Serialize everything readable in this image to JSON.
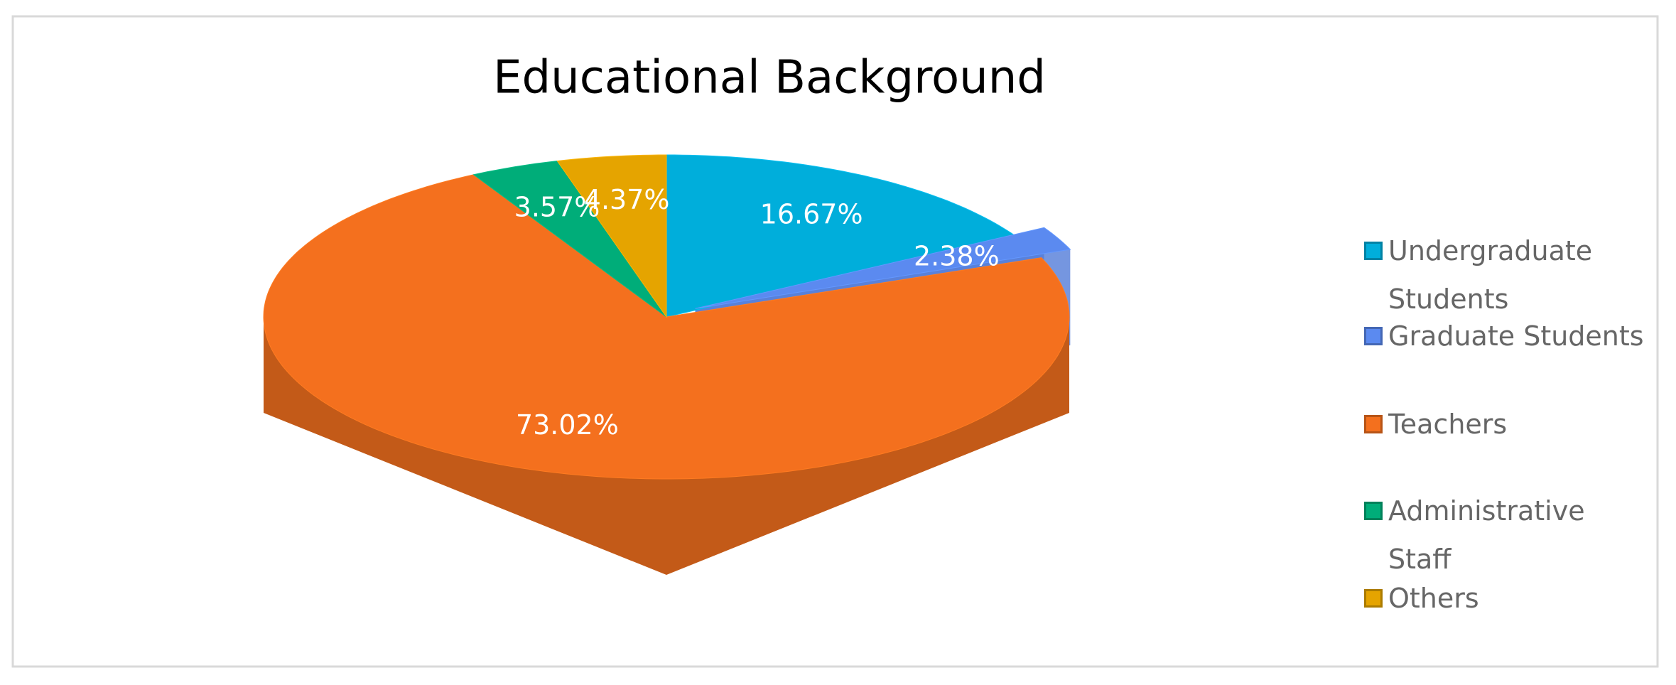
{
  "chart_data": {
    "type": "pie",
    "title": "Educational Background",
    "categories": [
      "Undergraduate Students",
      "Graduate Students",
      "Teachers",
      "Administrative Staff",
      "Others"
    ],
    "values": [
      16.67,
      2.38,
      73.02,
      3.57,
      4.37
    ],
    "value_labels": [
      "16.67%",
      "2.38%",
      "73.02%",
      "3.57%",
      "4.37%"
    ],
    "colors": [
      "#00aedb",
      "#5b8af0",
      "#f4701e",
      "#00ad79",
      "#e5a400"
    ],
    "exploded": [
      "Graduate Students"
    ],
    "legend": "right"
  }
}
